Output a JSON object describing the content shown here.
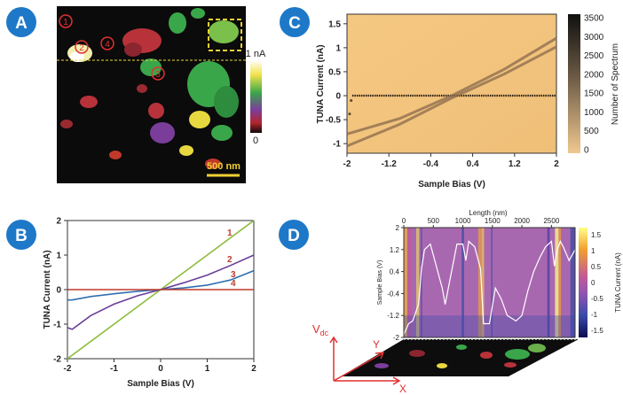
{
  "panels": {
    "a": {
      "badge": "A",
      "sites": [
        "1",
        "2",
        "4",
        "3"
      ],
      "scale_bar": "500 nm",
      "colorbar": {
        "max": "1 nA",
        "min": "0"
      }
    },
    "b": {
      "badge": "B",
      "curve_labels": [
        "1",
        "2",
        "3",
        "4"
      ]
    },
    "c": {
      "badge": "C"
    },
    "d": {
      "badge": "D",
      "axis_labels": {
        "vdc": "V",
        "vdc_sub": "dc",
        "x": "X",
        "y": "Y"
      }
    }
  },
  "chart_data": [
    {
      "panel": "B",
      "type": "line",
      "xlabel": "Sample Bias (V)",
      "ylabel": "TUNA Current (nA)",
      "xlim": [
        -2,
        2
      ],
      "ylim": [
        -2,
        2
      ],
      "xticks": [
        "-2",
        "-1",
        "0",
        "1",
        "2"
      ],
      "yticks": [
        "2",
        "1",
        "0",
        "-1",
        "-2"
      ],
      "grid": false,
      "series": [
        {
          "name": "1",
          "color": "#8dbb3c",
          "x": [
            -2,
            -1,
            0,
            1,
            2
          ],
          "y": [
            -2.0,
            -1.0,
            0.0,
            1.0,
            2.0
          ]
        },
        {
          "name": "2",
          "color": "#6a3d9a",
          "x": [
            -2,
            -1.9,
            -1.5,
            -1,
            -0.5,
            0,
            0.5,
            1,
            1.5,
            2
          ],
          "y": [
            -1.1,
            -1.15,
            -0.75,
            -0.42,
            -0.18,
            0.0,
            0.2,
            0.42,
            0.7,
            1.0
          ]
        },
        {
          "name": "3",
          "color": "#2f6fb0",
          "x": [
            -2,
            -1.9,
            -1.5,
            -1,
            -0.5,
            0,
            0.5,
            1,
            1.5,
            2
          ],
          "y": [
            -0.3,
            -0.3,
            -0.2,
            -0.12,
            -0.05,
            0.0,
            0.05,
            0.13,
            0.28,
            0.55
          ]
        },
        {
          "name": "4",
          "color": "#c0392b",
          "x": [
            -2,
            2
          ],
          "y": [
            0.0,
            0.0
          ]
        }
      ]
    },
    {
      "panel": "C",
      "type": "heatmap",
      "xlabel": "Sample Bias (V)",
      "ylabel": "TUNA Current (nA)",
      "xlim": [
        -2,
        2
      ],
      "ylim": [
        -1.2,
        1.7
      ],
      "xticks": [
        "-2",
        "-1.2",
        "-0.4",
        "0.4",
        "1.2",
        "2"
      ],
      "yticks": [
        "1.5",
        "1",
        "0.5",
        "0",
        "-0.5",
        "-1"
      ],
      "colorbar": {
        "label": "Number of Spectrum",
        "ticks": [
          "3500",
          "3000",
          "2500",
          "2000",
          "1500",
          "1000",
          "500",
          "0"
        ]
      },
      "features": [
        {
          "name": "flat",
          "x": [
            -1.9,
            2
          ],
          "y": [
            0,
            0
          ]
        },
        {
          "name": "upper",
          "x": [
            -2,
            -1,
            0,
            1,
            2
          ],
          "y": [
            -0.8,
            -0.48,
            0.0,
            0.55,
            1.2
          ]
        },
        {
          "name": "lower",
          "x": [
            -2,
            -1,
            0,
            1,
            2
          ],
          "y": [
            -1.05,
            -0.6,
            -0.05,
            0.45,
            1.02
          ]
        }
      ]
    },
    {
      "panel": "D",
      "type": "heatmap",
      "xlabel": "Length (nm)",
      "ylabel": "Sample Bias (V)",
      "xlim": [
        0,
        2900
      ],
      "ylim": [
        -2,
        2
      ],
      "xticks": [
        "0",
        "500",
        "1000",
        "1500",
        "2000",
        "2500"
      ],
      "yticks": [
        "2",
        "1.2",
        "0.4",
        "-0.4",
        "-1.2",
        "-2"
      ],
      "colorbar": {
        "label": "TUNA Current (nA)",
        "ticks": [
          "1.5",
          "1",
          "0.5",
          "0",
          "-0.5",
          "-1",
          "-1.5"
        ]
      },
      "profile": {
        "x": [
          0,
          80,
          150,
          250,
          300,
          350,
          450,
          550,
          650,
          700,
          800,
          900,
          1000,
          1050,
          1100,
          1200,
          1300,
          1350,
          1450,
          1550,
          1650,
          1750,
          1900,
          2000,
          2100,
          2200,
          2300,
          2400,
          2500,
          2550,
          2600,
          2650,
          2700,
          2800,
          2900
        ],
        "y": [
          -1.9,
          -1.5,
          -1.4,
          -0.8,
          0.5,
          1.2,
          1.4,
          0.6,
          -0.2,
          -0.8,
          0.3,
          1.4,
          1.4,
          0.8,
          1.5,
          1.3,
          0.5,
          -1.5,
          -1.5,
          -0.2,
          -0.6,
          -1.2,
          -1.4,
          -1.2,
          -0.3,
          0.4,
          0.9,
          1.3,
          1.5,
          0.6,
          1.2,
          1.5,
          1.3,
          0.8,
          1.2
        ]
      }
    }
  ]
}
